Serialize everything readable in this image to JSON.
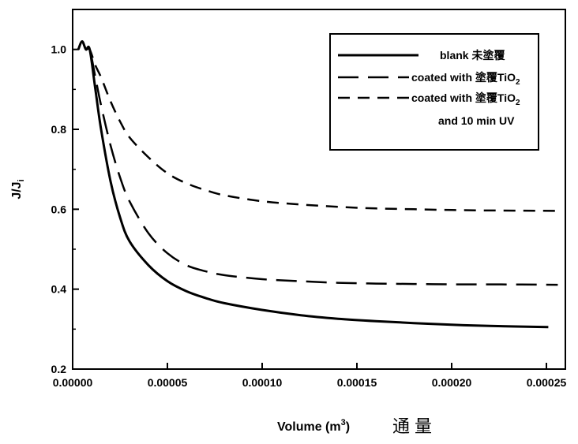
{
  "chart_data": {
    "type": "line",
    "xlabel": "Volume (m",
    "xlabel_sup": "3",
    "xlabel_tail": ")",
    "xlabel_cjk": "通量",
    "ylabel": "J/J",
    "ylabel_sub": "i",
    "xlim": [
      0,
      0.00026
    ],
    "ylim": [
      0.2,
      1.1
    ],
    "xticks": [
      "0.00000",
      "0.00005",
      "0.00010",
      "0.00015",
      "0.00020",
      "0.00025"
    ],
    "xtick_values": [
      0,
      5e-05,
      0.0001,
      0.00015,
      0.0002,
      0.00025
    ],
    "yticks": [
      "0.2",
      "0.4",
      "0.6",
      "0.8",
      "1.0"
    ],
    "ytick_values": [
      0.2,
      0.4,
      0.6,
      0.8,
      1.0
    ],
    "legend_position": "top-right",
    "grid": false,
    "series": [
      {
        "name": "blank 未塗覆",
        "style": "solid",
        "x": [
          3e-06,
          5e-06,
          7e-06,
          9e-06,
          1.2e-05,
          1.5e-05,
          2e-05,
          2.5e-05,
          3e-05,
          4e-05,
          5e-05,
          6e-05,
          7e-05,
          8e-05,
          0.0001,
          0.00012,
          0.00014,
          0.00016,
          0.00018,
          0.0002,
          0.00022,
          0.000251
        ],
        "y": [
          1.0,
          1.02,
          1.0,
          1.0,
          0.9,
          0.8,
          0.67,
          0.58,
          0.52,
          0.46,
          0.42,
          0.395,
          0.378,
          0.365,
          0.348,
          0.335,
          0.326,
          0.32,
          0.315,
          0.311,
          0.308,
          0.305
        ]
      },
      {
        "name": "coated with 塗覆TiO",
        "name_sub": "2",
        "style": "long-dash",
        "x": [
          3e-06,
          5e-06,
          7e-06,
          9e-06,
          1.2e-05,
          1.5e-05,
          2e-05,
          2.5e-05,
          3e-05,
          4e-05,
          5e-05,
          6e-05,
          7e-05,
          8e-05,
          0.0001,
          0.00012,
          0.00014,
          0.00016,
          0.00018,
          0.0002,
          0.00022,
          0.000256
        ],
        "y": [
          1.0,
          1.02,
          1.0,
          1.0,
          0.93,
          0.86,
          0.76,
          0.68,
          0.62,
          0.54,
          0.49,
          0.46,
          0.445,
          0.435,
          0.425,
          0.42,
          0.416,
          0.414,
          0.413,
          0.412,
          0.412,
          0.411
        ]
      },
      {
        "name": "coated with 塗覆TiO",
        "name_sub": "2",
        "name_line2": "and 10 min UV",
        "style": "short-dash",
        "x": [
          3e-06,
          5e-06,
          7e-06,
          9e-06,
          1.2e-05,
          1.5e-05,
          2e-05,
          2.5e-05,
          3e-05,
          4e-05,
          5e-05,
          6e-05,
          7e-05,
          8e-05,
          0.0001,
          0.00012,
          0.00014,
          0.00016,
          0.00018,
          0.0002,
          0.00022,
          0.000256
        ],
        "y": [
          1.0,
          1.02,
          1.0,
          1.0,
          0.96,
          0.93,
          0.87,
          0.82,
          0.78,
          0.73,
          0.69,
          0.665,
          0.648,
          0.635,
          0.62,
          0.612,
          0.606,
          0.602,
          0.6,
          0.598,
          0.597,
          0.596
        ]
      }
    ]
  }
}
